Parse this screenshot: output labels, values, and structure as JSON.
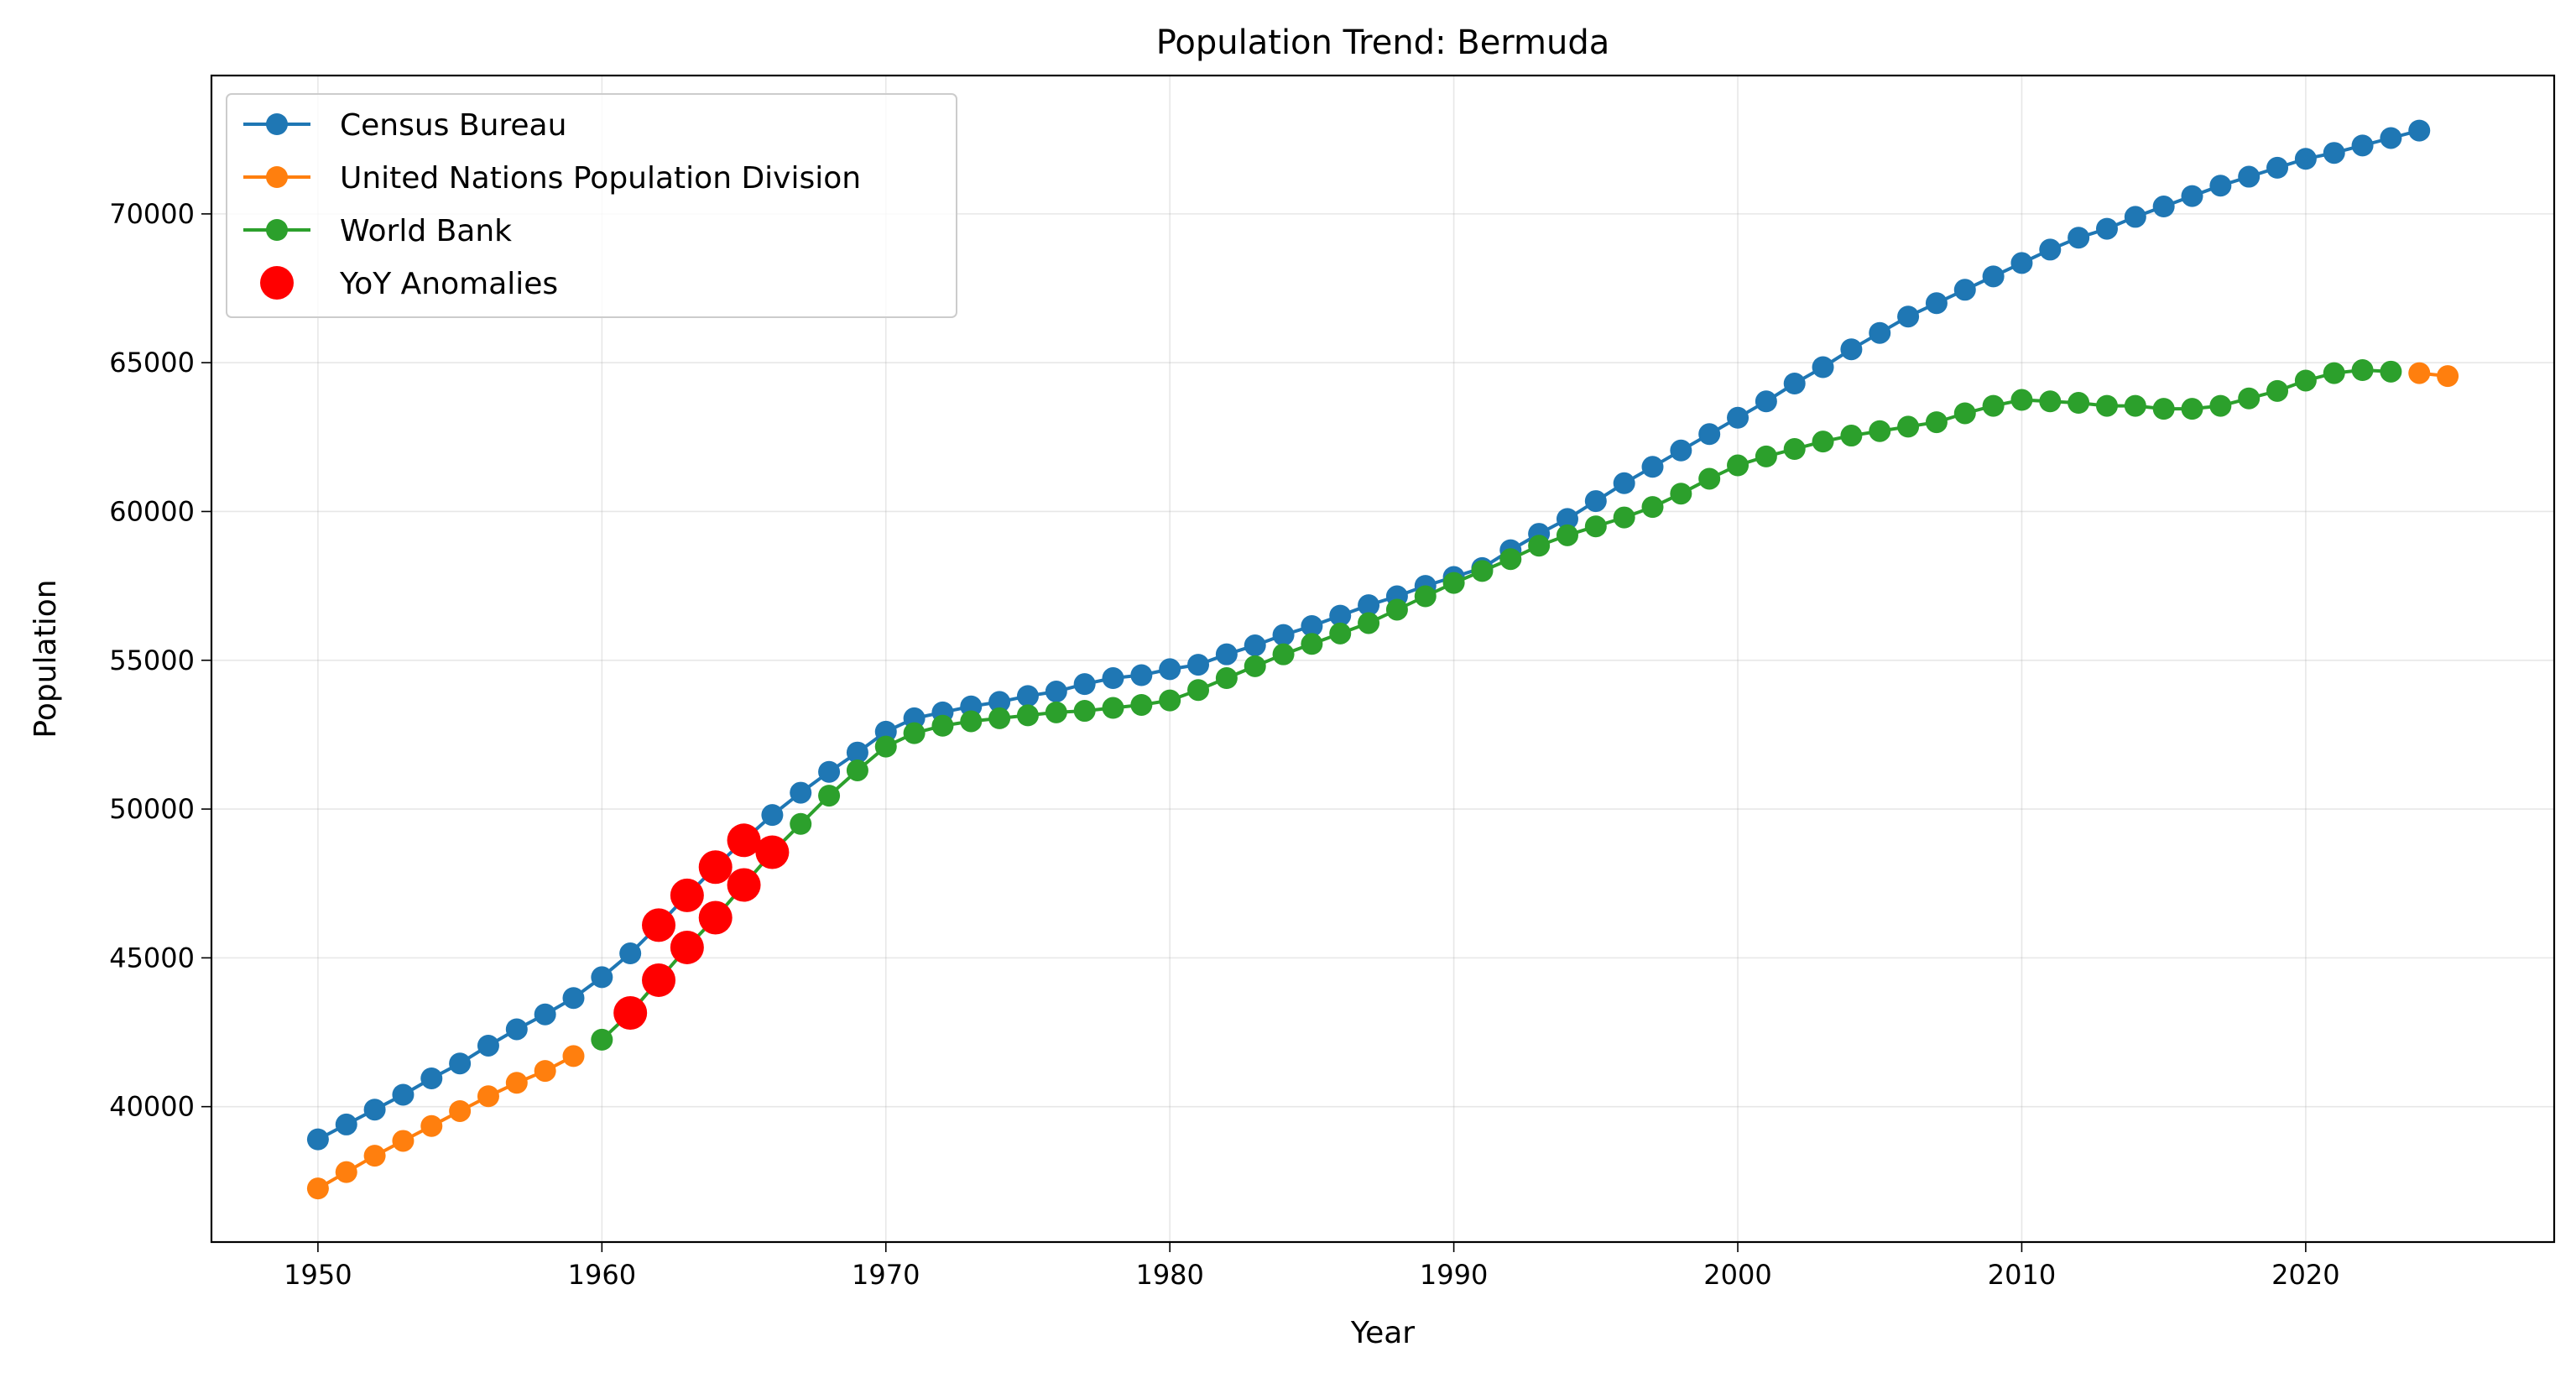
{
  "chart_data": {
    "type": "line",
    "title": "Population Trend: Bermuda",
    "xlabel": "Year",
    "ylabel": "Population",
    "xlim": [
      1946.25,
      2028.75
    ],
    "ylim": [
      35450,
      74650
    ],
    "x_ticks": [
      1950,
      1960,
      1970,
      1980,
      1990,
      2000,
      2010,
      2020
    ],
    "y_ticks": [
      40000,
      45000,
      50000,
      55000,
      60000,
      65000,
      70000
    ],
    "grid": true,
    "legend_position": "top-left",
    "series": [
      {
        "name": "Census Bureau",
        "color": "#1f77b4",
        "x": [
          1950,
          1951,
          1952,
          1953,
          1954,
          1955,
          1956,
          1957,
          1958,
          1959,
          1960,
          1961,
          1962,
          1963,
          1964,
          1965,
          1966,
          1967,
          1968,
          1969,
          1970,
          1971,
          1972,
          1973,
          1974,
          1975,
          1976,
          1977,
          1978,
          1979,
          1980,
          1981,
          1982,
          1983,
          1984,
          1985,
          1986,
          1987,
          1988,
          1989,
          1990,
          1991,
          1992,
          1993,
          1994,
          1995,
          1996,
          1997,
          1998,
          1999,
          2000,
          2001,
          2002,
          2003,
          2004,
          2005,
          2006,
          2007,
          2008,
          2009,
          2010,
          2011,
          2012,
          2013,
          2014,
          2015,
          2016,
          2017,
          2018,
          2019,
          2020,
          2021,
          2022,
          2023,
          2024
        ],
        "values": [
          38900,
          39400,
          39900,
          40400,
          40950,
          41450,
          42050,
          42600,
          43100,
          43650,
          44350,
          45150,
          46100,
          47100,
          48050,
          48950,
          49800,
          50550,
          51250,
          51900,
          52600,
          53050,
          53250,
          53450,
          53600,
          53800,
          53950,
          54200,
          54400,
          54500,
          54700,
          54850,
          55200,
          55500,
          55850,
          56150,
          56500,
          56850,
          57150,
          57500,
          57800,
          58100,
          58700,
          59250,
          59750,
          60350,
          60950,
          61500,
          62050,
          62600,
          63150,
          63700,
          64300,
          64850,
          65450,
          66000,
          66550,
          67000,
          67450,
          67900,
          68350,
          68800,
          69200,
          69500,
          69900,
          70250,
          70600,
          70950,
          71250,
          71550,
          71850,
          72050,
          72300,
          72550,
          72800
        ]
      },
      {
        "name": "United Nations Population Division",
        "color": "#ff7f0e",
        "x": [
          1950,
          1951,
          1952,
          1953,
          1954,
          1955,
          1956,
          1957,
          1958,
          1959,
          2024,
          2025
        ],
        "values": [
          37250,
          37800,
          38350,
          38850,
          39350,
          39850,
          40350,
          40800,
          41200,
          41700,
          64650,
          64550
        ]
      },
      {
        "name": "World Bank",
        "color": "#2ca02c",
        "x": [
          1960,
          1961,
          1962,
          1963,
          1964,
          1965,
          1966,
          1967,
          1968,
          1969,
          1970,
          1971,
          1972,
          1973,
          1974,
          1975,
          1976,
          1977,
          1978,
          1979,
          1980,
          1981,
          1982,
          1983,
          1984,
          1985,
          1986,
          1987,
          1988,
          1989,
          1990,
          1991,
          1992,
          1993,
          1994,
          1995,
          1996,
          1997,
          1998,
          1999,
          2000,
          2001,
          2002,
          2003,
          2004,
          2005,
          2006,
          2007,
          2008,
          2009,
          2010,
          2011,
          2012,
          2013,
          2014,
          2015,
          2016,
          2017,
          2018,
          2019,
          2020,
          2021,
          2022,
          2023
        ],
        "values": [
          42250,
          43150,
          44250,
          45350,
          46350,
          47450,
          48550,
          49500,
          50450,
          51300,
          52100,
          52550,
          52800,
          52950,
          53050,
          53150,
          53250,
          53300,
          53400,
          53500,
          53650,
          54000,
          54400,
          54800,
          55200,
          55550,
          55900,
          56250,
          56700,
          57150,
          57600,
          58000,
          58400,
          58850,
          59200,
          59500,
          59800,
          60150,
          60600,
          61100,
          61550,
          61850,
          62100,
          62350,
          62550,
          62700,
          62850,
          63000,
          63300,
          63550,
          63750,
          63700,
          63650,
          63550,
          63550,
          63450,
          63450,
          63550,
          63800,
          64050,
          64400,
          64650,
          64750,
          64700
        ]
      },
      {
        "name": "YoY Anomalies",
        "color": "#ff0000",
        "type": "scatter",
        "x": [
          1961,
          1962,
          1962,
          1963,
          1963,
          1964,
          1964,
          1965,
          1965,
          1966
        ],
        "values": [
          43150,
          44250,
          46100,
          45350,
          47100,
          46350,
          48050,
          47450,
          48950,
          48550
        ]
      }
    ]
  }
}
